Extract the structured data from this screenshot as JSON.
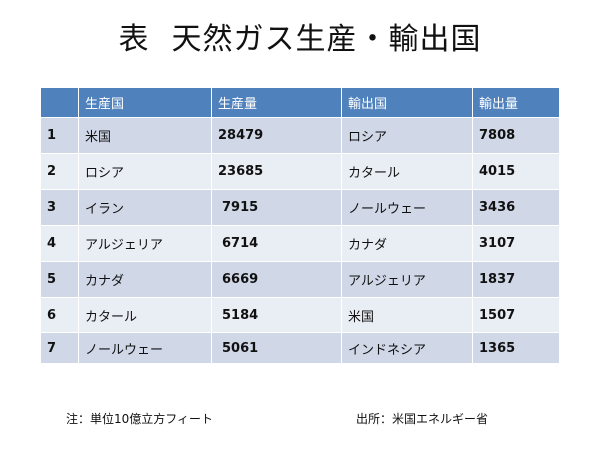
{
  "title": {
    "prefix": "表",
    "main": "天然ガス生産・輸出国"
  },
  "table": {
    "headers": [
      "",
      "生産国",
      "生産量",
      "輸出国",
      "輸出量"
    ],
    "rows": [
      {
        "rank": "1",
        "producer": "米国",
        "production": "28479",
        "exporter": "ロシア",
        "exports": "7808"
      },
      {
        "rank": "2",
        "producer": "ロシア",
        "production": "23685",
        "exporter": "カタール",
        "exports": "4015"
      },
      {
        "rank": "3",
        "producer": "イラン",
        "production": "7915",
        "exporter": "ノールウェー",
        "exports": "3436"
      },
      {
        "rank": "4",
        "producer": "アルジェリア",
        "production": "6714",
        "exporter": "カナダ",
        "exports": "3107"
      },
      {
        "rank": "5",
        "producer": "カナダ",
        "production": "6669",
        "exporter": "アルジェリア",
        "exports": "1837"
      },
      {
        "rank": "6",
        "producer": "カタール",
        "production": "5184",
        "exporter": "米国",
        "exports": "1507"
      },
      {
        "rank": "7",
        "producer": "ノールウェー",
        "production": "5061",
        "exporter": "インドネシア",
        "exports": "1365"
      }
    ]
  },
  "footnote": {
    "note": "注：単位10億立方フィート",
    "source": "出所：米国エネルギー省"
  },
  "colors": {
    "header_bg": "#4f81bd",
    "row_dark": "#d0d8e8",
    "row_light": "#e9edf4"
  }
}
